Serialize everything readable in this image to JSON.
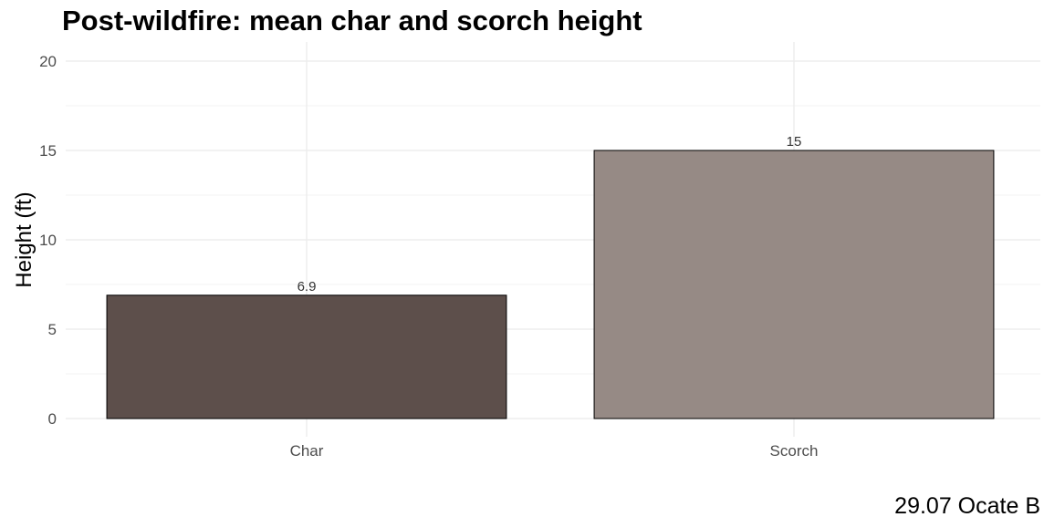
{
  "chart_data": {
    "type": "bar",
    "title": "Post-wildfire: mean char and scorch height",
    "xlabel": "",
    "ylabel": "Height (ft)",
    "categories": [
      "Char",
      "Scorch"
    ],
    "values": [
      6.9,
      15
    ],
    "data_labels": [
      "6.9",
      "15"
    ],
    "colors": [
      "#5d4f4b",
      "#968a85"
    ],
    "ylim": [
      0,
      20
    ],
    "yticks": [
      0,
      5,
      10,
      15,
      20
    ],
    "grid": true,
    "legend": "none"
  },
  "footnote": "29.07 Ocate B"
}
